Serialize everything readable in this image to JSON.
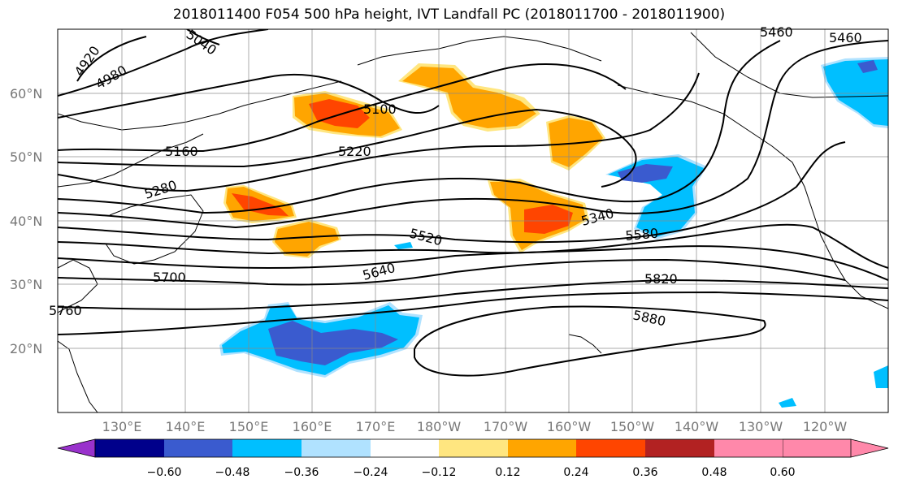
{
  "title": "2018011400 F054 500 hPa height, IVT Landfall PC (2018011700 - 2018011900)",
  "lat_labels": [
    "60°N",
    "50°N",
    "40°N",
    "30°N",
    "20°N"
  ],
  "lon_labels": [
    "130°E",
    "140°E",
    "150°E",
    "160°E",
    "170°E",
    "180°W",
    "170°W",
    "160°W",
    "150°W",
    "140°W",
    "130°W",
    "120°W"
  ],
  "contour_labels": [
    "4920",
    "4980",
    "5040",
    "5100",
    "5160",
    "5220",
    "5280",
    "5340",
    "5460",
    "5460",
    "5520",
    "5580",
    "5640",
    "5700",
    "5760",
    "5820",
    "5880"
  ],
  "colorbar": {
    "ticks": [
      "−0.60",
      "−0.48",
      "−0.36",
      "−0.24",
      "−0.12",
      "0.12",
      "0.24",
      "0.36",
      "0.48",
      "0.60"
    ],
    "colors": [
      "#9932CC",
      "#00008B",
      "#3A5BCF",
      "#00BFFF",
      "#B0E2FF",
      "#FFFFFF",
      "#FFE680",
      "#FFA500",
      "#FF4500",
      "#B22222",
      "#FF88AA"
    ]
  },
  "chart_data": {
    "type": "contour-map",
    "projection": "cylindrical",
    "lon_range": [
      120,
      251
    ],
    "lat_range": [
      10,
      70
    ],
    "contour_field": "500 hPa height",
    "contour_levels_labeled": [
      4920,
      4980,
      5040,
      5100,
      5160,
      5220,
      5280,
      5340,
      5460,
      5520,
      5580,
      5640,
      5700,
      5760,
      5820,
      5880
    ],
    "shaded_field": "IVT Landfall PC",
    "shading_levels": [
      -0.6,
      -0.48,
      -0.36,
      -0.24,
      -0.12,
      0.12,
      0.24,
      0.36,
      0.48,
      0.6
    ],
    "grid": true
  }
}
